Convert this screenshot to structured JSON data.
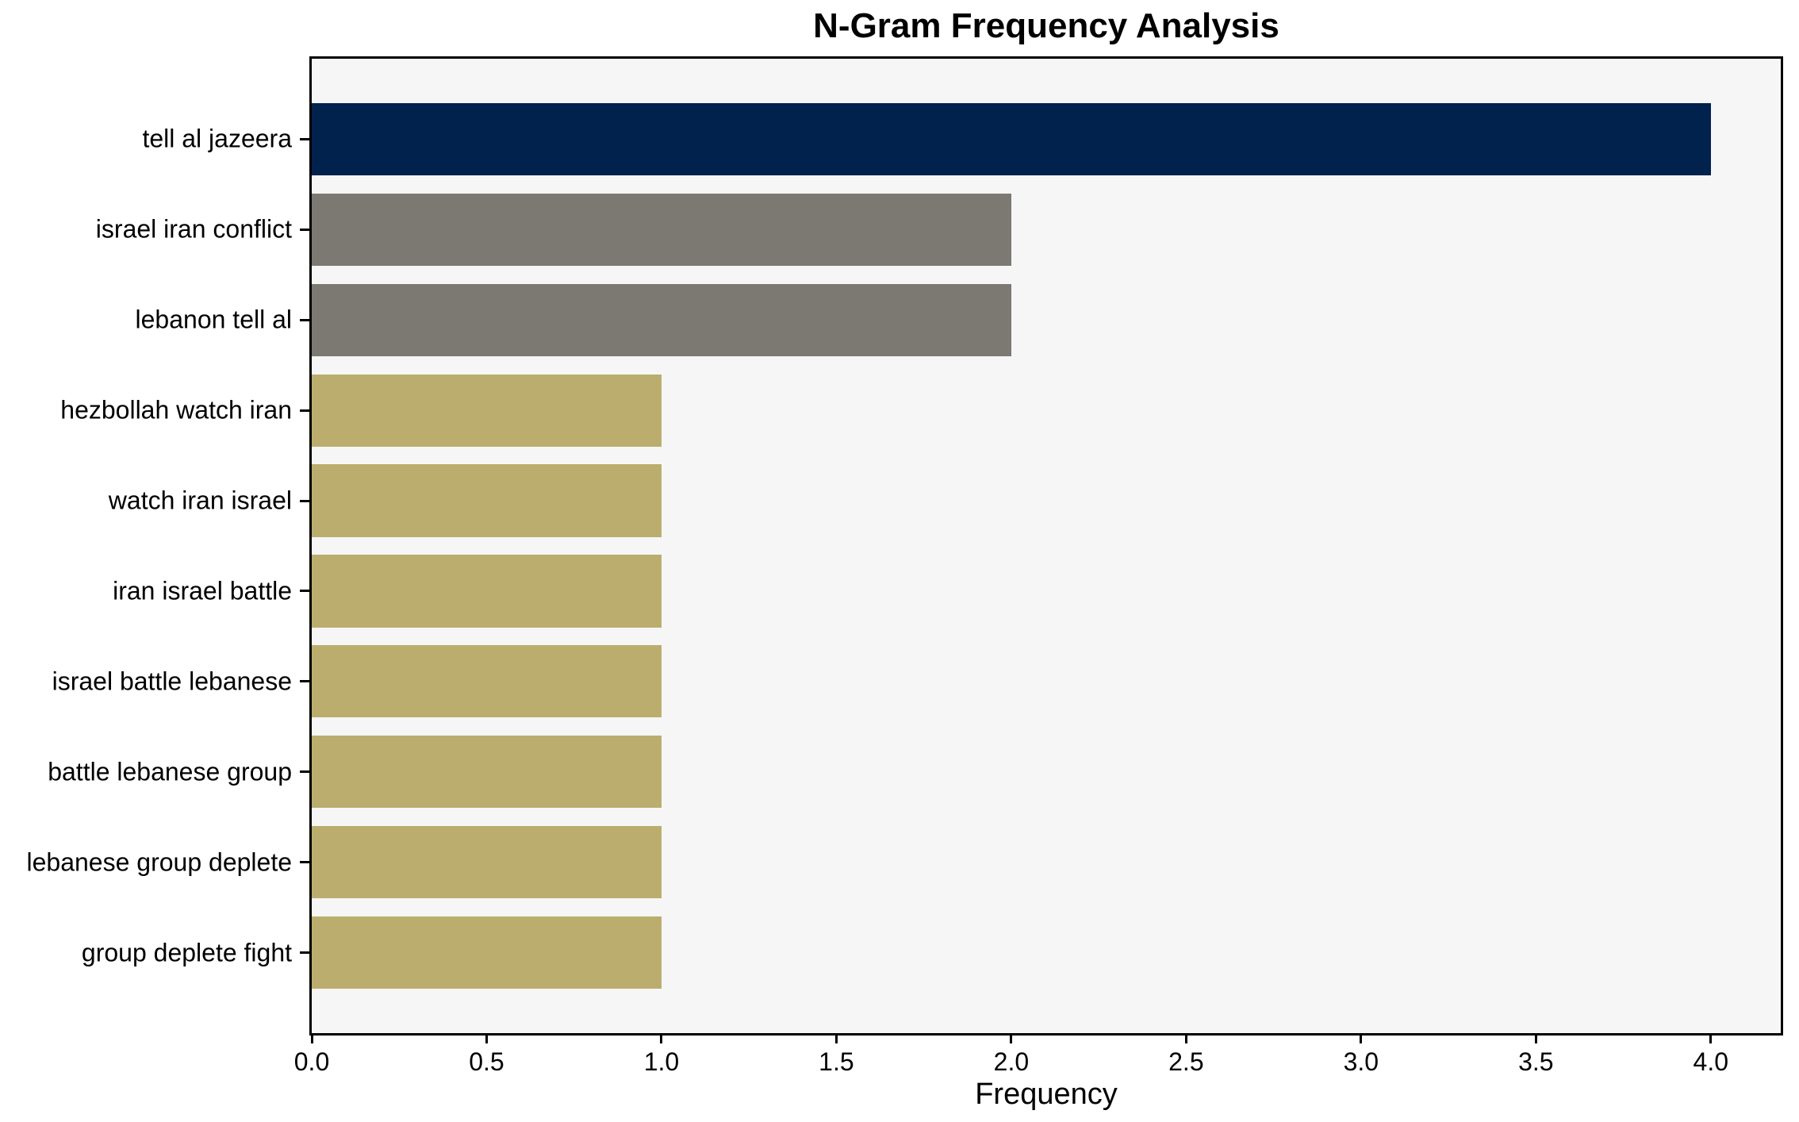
{
  "title": "N-Gram Frequency Analysis",
  "axes": {
    "xlabel": "Frequency"
  },
  "chart_data": {
    "type": "bar",
    "orientation": "horizontal",
    "title": "N-Gram Frequency Analysis",
    "xlabel": "Frequency",
    "ylabel": "",
    "categories": [
      "tell al jazeera",
      "israel iran conflict",
      "lebanon tell al",
      "hezbollah watch iran",
      "watch iran israel",
      "iran israel battle",
      "israel battle lebanese",
      "battle lebanese group",
      "lebanese group deplete",
      "group deplete fight"
    ],
    "values": [
      4,
      2,
      2,
      1,
      1,
      1,
      1,
      1,
      1,
      1
    ],
    "bar_colors": [
      "#01224D",
      "#7B7972",
      "#7B7972",
      "#BAAD6E",
      "#BAAD6E",
      "#BAAD6E",
      "#BAAD6E",
      "#BAAD6E",
      "#BAAD6E",
      "#BAAD6E"
    ],
    "xlim": [
      0,
      4.2
    ],
    "xticks": [
      0.0,
      0.5,
      1.0,
      1.5,
      2.0,
      2.5,
      3.0,
      3.5,
      4.0
    ],
    "xtick_labels": [
      "0.0",
      "0.5",
      "1.0",
      "1.5",
      "2.0",
      "2.5",
      "3.0",
      "3.5",
      "4.0"
    ],
    "grid": false,
    "legend": null,
    "plot_background": "#F6F6F6",
    "figure_background": "#FFFFFF",
    "axis_color": "#000000",
    "bar_height_fraction": 0.8
  }
}
